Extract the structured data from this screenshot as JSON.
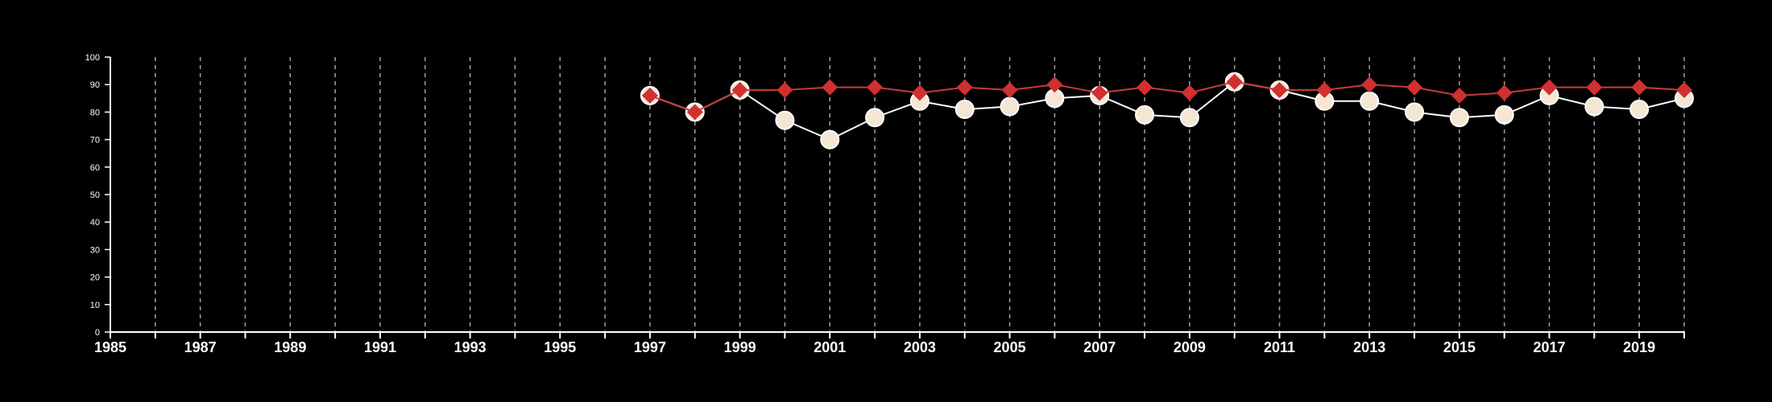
{
  "chart_data": {
    "type": "line",
    "title": "",
    "xlabel": "",
    "ylabel": "",
    "xlim": [
      1985,
      2020
    ],
    "ylim": [
      0,
      100
    ],
    "x_ticks": [
      1985,
      1986,
      1987,
      1988,
      1989,
      1990,
      1991,
      1992,
      1993,
      1994,
      1995,
      1996,
      1997,
      1998,
      1999,
      2000,
      2001,
      2002,
      2003,
      2004,
      2005,
      2006,
      2007,
      2008,
      2009,
      2010,
      2011,
      2012,
      2013,
      2014,
      2015,
      2016,
      2017,
      2018,
      2019,
      2020
    ],
    "x_tick_labels": [
      "1985",
      "1987",
      "1989",
      "1991",
      "1993",
      "1995",
      "1997",
      "1999",
      "2001",
      "2003",
      "2005",
      "2007",
      "2009",
      "2011",
      "2013",
      "2015",
      "2017",
      "2019"
    ],
    "y_ticks": [
      "0",
      "10",
      "20",
      "30",
      "40",
      "50",
      "60",
      "70",
      "80",
      "90",
      "100"
    ],
    "grid": "vertical dashed",
    "legend": "none",
    "series": [
      {
        "marker": "circle",
        "color": "#f5e6d3",
        "line_color": "#ffffff",
        "x": [
          1997,
          1998,
          1999,
          2000,
          2001,
          2002,
          2003,
          2004,
          2005,
          2006,
          2007,
          2008,
          2009,
          2010,
          2011,
          2012,
          2013,
          2014,
          2015,
          2016,
          2017,
          2018,
          2019,
          2020
        ],
        "y": [
          86,
          80,
          88,
          77,
          70,
          78,
          84,
          81,
          82,
          85,
          86,
          79,
          78,
          91,
          88,
          84,
          84,
          80,
          78,
          79,
          86,
          82,
          81,
          85
        ]
      },
      {
        "marker": "diamond",
        "color": "#d03030",
        "line_color": "#c83a3a",
        "x": [
          1997,
          1998,
          1999,
          2000,
          2001,
          2002,
          2003,
          2004,
          2005,
          2006,
          2007,
          2008,
          2009,
          2010,
          2011,
          2012,
          2013,
          2014,
          2015,
          2016,
          2017,
          2018,
          2019,
          2020
        ],
        "y": [
          86,
          80,
          88,
          88,
          89,
          89,
          87,
          89,
          88,
          90,
          87,
          89,
          87,
          91,
          88,
          88,
          90,
          89,
          86,
          87,
          89,
          89,
          89,
          88
        ]
      }
    ]
  }
}
